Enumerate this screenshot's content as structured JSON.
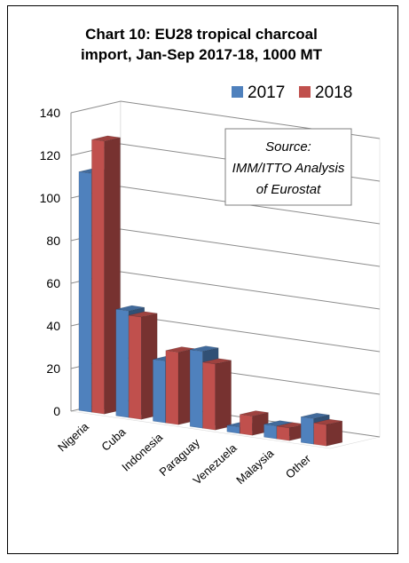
{
  "chart_data": {
    "type": "bar",
    "title": "Chart 10: EU28 tropical charcoal import, Jan-Sep 2017-18, 1000 MT",
    "title_lines": [
      "Chart 10: EU28 tropical charcoal",
      "import, Jan-Sep 2017-18, 1000 MT"
    ],
    "categories": [
      "Nigeria",
      "Cuba",
      "Indonesia",
      "Paraguay",
      "Venezuela",
      "Malaysia",
      "Other"
    ],
    "series": [
      {
        "name": "2017",
        "color": "#4f81bd",
        "values": [
          112,
          50,
          29,
          36,
          3,
          6,
          12
        ]
      },
      {
        "name": "2018",
        "color": "#c0504d",
        "values": [
          128,
          48,
          34,
          31,
          9,
          6,
          10
        ]
      }
    ],
    "yticks": [
      "0",
      "20",
      "40",
      "60",
      "80",
      "100",
      "120",
      "140"
    ],
    "ylim": [
      0,
      140
    ],
    "legend_position": "top-right",
    "annotation_lines": [
      "Source:",
      "IMM/ITTO Analysis",
      "of Eurostat"
    ]
  }
}
